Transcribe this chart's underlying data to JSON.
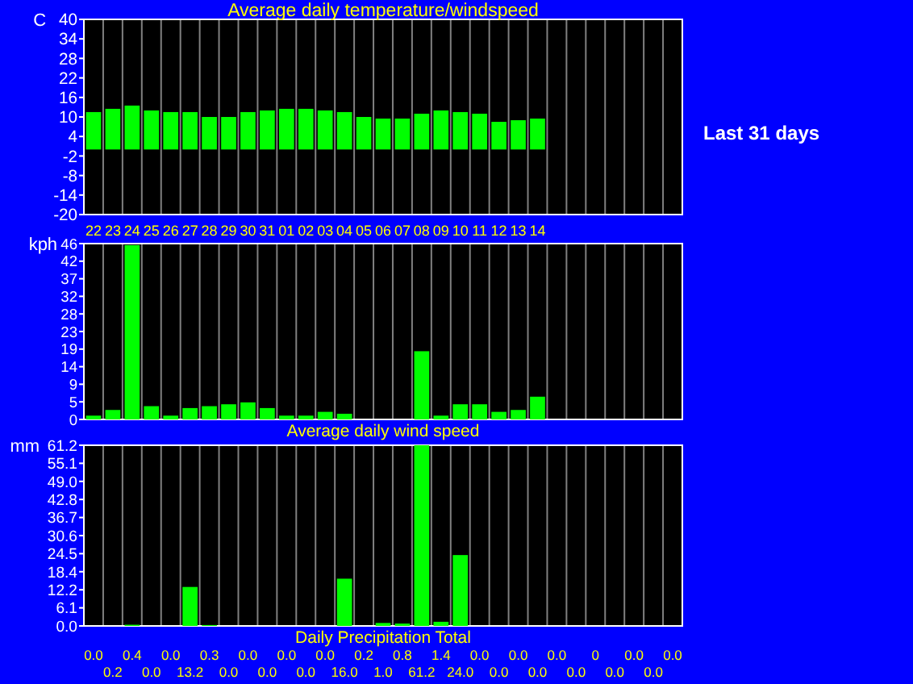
{
  "chart_data": [
    {
      "type": "bar",
      "title": "Average daily temperature/windspeed",
      "ylabel": "C",
      "annotations": [
        "Last 31 days"
      ],
      "categories": [
        "22",
        "23",
        "24",
        "25",
        "26",
        "27",
        "28",
        "29",
        "30",
        "31",
        "01",
        "02",
        "03",
        "04",
        "05",
        "06",
        "07",
        "08",
        "09",
        "10",
        "11",
        "12",
        "13",
        "14",
        null,
        null,
        null,
        null,
        null,
        null,
        null
      ],
      "values": [
        11.5,
        12.5,
        13.5,
        12,
        11.5,
        11.5,
        10,
        10,
        11.5,
        12,
        12.5,
        12.5,
        12,
        11.5,
        10,
        9.5,
        9.5,
        11,
        12,
        11.5,
        11,
        8.5,
        9,
        9.5,
        null,
        null,
        null,
        null,
        null,
        null,
        null
      ],
      "color": "#00ff00",
      "ylim": [
        -20,
        40
      ],
      "yticks": [
        -20,
        -14,
        -8,
        -2,
        4,
        10,
        16,
        22,
        28,
        34,
        40
      ],
      "grid": "x"
    },
    {
      "type": "bar",
      "xlabel": "Average daily wind speed",
      "ylabel": "kph",
      "categories": [
        null,
        null,
        null,
        null,
        null,
        null,
        null,
        null,
        null,
        null,
        null,
        null,
        null,
        null,
        null,
        null,
        null,
        null,
        null,
        null,
        null,
        null,
        null,
        null,
        null,
        null,
        null,
        null,
        null,
        null,
        null
      ],
      "values": [
        1,
        2.5,
        46,
        3.5,
        1,
        3,
        3.5,
        4,
        4.5,
        3,
        1,
        1,
        2,
        1.5,
        0,
        0,
        0,
        18,
        1,
        4,
        4,
        2,
        2.5,
        6,
        null,
        null,
        null,
        null,
        null,
        null,
        null
      ],
      "color": "#00ff00",
      "ylim": [
        0,
        46.4
      ],
      "yticks": [
        0,
        {
          "value": 4.64,
          "label": "5"
        },
        {
          "value": 9.28,
          "label": "9"
        },
        {
          "value": 13.92,
          "label": "14"
        },
        {
          "value": 18.56,
          "label": "19"
        },
        {
          "value": 23.2,
          "label": "23"
        },
        {
          "value": 27.84,
          "label": "28"
        },
        {
          "value": 32.48,
          "label": "32"
        },
        {
          "value": 37.12,
          "label": "37"
        },
        {
          "value": 41.76,
          "label": "42"
        },
        {
          "value": 46.4,
          "label": "46"
        }
      ],
      "grid": "x",
      "tick_labels": "y"
    },
    {
      "type": "bar",
      "xlabel": "Daily Precipitation Total",
      "ylabel": "mm",
      "categories": [
        null,
        null,
        null,
        null,
        null,
        null,
        null,
        null,
        null,
        null,
        null,
        null,
        null,
        null,
        null,
        null,
        null,
        null,
        null,
        null,
        null,
        null,
        null,
        null,
        null,
        null,
        null,
        null,
        null,
        null,
        null
      ],
      "values": [
        0,
        0.2,
        0.4,
        0,
        0,
        13.2,
        0.3,
        0,
        0,
        0,
        0,
        0,
        0,
        16,
        0.2,
        1,
        0.8,
        61.2,
        1.4,
        24,
        0,
        0,
        0,
        0,
        0,
        0,
        0,
        0,
        0,
        0,
        0
      ],
      "value_labels": [
        "0.0",
        "0.2",
        "0.4",
        "0.0",
        "0.0",
        "13.2",
        "0.3",
        "0.0",
        "0.0",
        "0.0",
        "0.0",
        "0.0",
        "0.0",
        "16.0",
        "0.2",
        "1.0",
        "0.8",
        "61.2",
        "1.4",
        "24.0",
        "0.0",
        "0.0",
        "0.0",
        "0.0",
        "0.0",
        "0.0",
        "0",
        "0.0",
        "0.0",
        "0.0",
        "0.0"
      ],
      "color": "#00ff00",
      "ylim": [
        0,
        61.2
      ],
      "yticks": [
        {
          "value": 0,
          "label": "0.0"
        },
        {
          "value": 6.12,
          "label": "6.1"
        },
        {
          "value": 12.24,
          "label": "12.2"
        },
        {
          "value": 18.36,
          "label": "18.4"
        },
        {
          "value": 24.48,
          "label": "24.5"
        },
        {
          "value": 30.6,
          "label": "30.6"
        },
        {
          "value": 36.72,
          "label": "36.7"
        },
        {
          "value": 42.84,
          "label": "42.8"
        },
        {
          "value": 48.96,
          "label": "49.0"
        },
        {
          "value": 55.08,
          "label": "55.1"
        },
        {
          "value": 61.2,
          "label": "61.2"
        }
      ],
      "grid": "x",
      "tick_labels": "y"
    }
  ]
}
